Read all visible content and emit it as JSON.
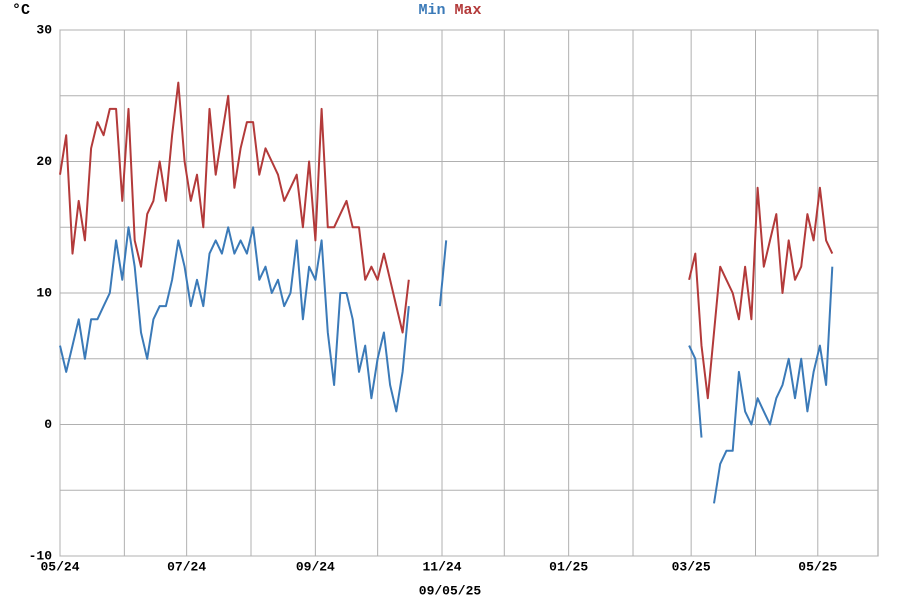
{
  "chart_data": {
    "type": "line",
    "ylabel": "°C",
    "caption": "09/05/25",
    "x": [
      0,
      3,
      6,
      9,
      12,
      15,
      18,
      21,
      24,
      27,
      30,
      33,
      36,
      39,
      42,
      45,
      48,
      51,
      54,
      57,
      60,
      63,
      66,
      69,
      72,
      75,
      78,
      81,
      84,
      87,
      90,
      93,
      96,
      99,
      102,
      105,
      108,
      111,
      114,
      117,
      120,
      123,
      126,
      129,
      132,
      135,
      138,
      141,
      144,
      147,
      150,
      153,
      156,
      159,
      162,
      165,
      168,
      171,
      174,
      177,
      180,
      183,
      186,
      189,
      192,
      195,
      198,
      201,
      204,
      207,
      210,
      213,
      216,
      219,
      222,
      225,
      228,
      231,
      234,
      237,
      240,
      243,
      246,
      249,
      252,
      255,
      258,
      261,
      264,
      267,
      270,
      273,
      276,
      279,
      282,
      285,
      288,
      291,
      294,
      297,
      300,
      303,
      306,
      309,
      312,
      315,
      318,
      321,
      324,
      327,
      330,
      333,
      336,
      339,
      342,
      345,
      348,
      351,
      354,
      357,
      360,
      363,
      366,
      369,
      372
    ],
    "series": [
      {
        "name": "Min",
        "color": "#3b7ab8",
        "values": [
          6,
          4,
          6,
          8,
          5,
          8,
          8,
          9,
          10,
          14,
          11,
          15,
          12,
          7,
          5,
          8,
          9,
          9,
          11,
          14,
          12,
          9,
          11,
          9,
          13,
          14,
          13,
          15,
          13,
          14,
          13,
          15,
          11,
          12,
          10,
          11,
          9,
          10,
          14,
          8,
          12,
          11,
          14,
          7,
          3,
          10,
          10,
          8,
          4,
          6,
          2,
          5,
          7,
          3,
          1,
          4,
          9,
          null,
          null,
          null,
          null,
          9,
          14,
          null,
          null,
          null,
          null,
          null,
          null,
          null,
          null,
          null,
          null,
          null,
          null,
          null,
          null,
          null,
          null,
          null,
          null,
          null,
          null,
          null,
          null,
          null,
          null,
          null,
          null,
          null,
          null,
          null,
          null,
          null,
          null,
          null,
          null,
          null,
          null,
          null,
          null,
          6,
          5,
          -1,
          null,
          -6,
          -3,
          -2,
          -2,
          4,
          1,
          0,
          2,
          1,
          0,
          2,
          3,
          5,
          2,
          5,
          1,
          4,
          6,
          3,
          12
        ]
      },
      {
        "name": "Max",
        "color": "#b33a3a",
        "values": [
          19,
          22,
          13,
          17,
          14,
          21,
          23,
          22,
          24,
          24,
          17,
          24,
          14,
          12,
          16,
          17,
          20,
          17,
          22,
          26,
          20,
          17,
          19,
          15,
          24,
          19,
          22,
          25,
          18,
          21,
          23,
          23,
          19,
          21,
          20,
          19,
          17,
          18,
          19,
          15,
          20,
          14,
          24,
          15,
          15,
          16,
          17,
          15,
          15,
          11,
          12,
          11,
          13,
          11,
          9,
          7,
          11,
          null,
          null,
          null,
          null,
          null,
          null,
          null,
          null,
          null,
          null,
          null,
          null,
          null,
          null,
          null,
          null,
          null,
          null,
          null,
          null,
          null,
          null,
          null,
          null,
          null,
          null,
          null,
          null,
          null,
          null,
          null,
          null,
          null,
          null,
          null,
          null,
          null,
          null,
          null,
          null,
          null,
          null,
          null,
          null,
          11,
          13,
          6,
          2,
          7,
          12,
          11,
          10,
          8,
          12,
          8,
          18,
          12,
          14,
          16,
          10,
          14,
          11,
          12,
          16,
          14,
          18,
          14,
          13
        ]
      }
    ],
    "xlim": [
      0,
      394
    ],
    "xticks": [
      {
        "value": 0,
        "label": "05/24"
      },
      {
        "value": 31,
        "label": null
      },
      {
        "value": 61,
        "label": "07/24"
      },
      {
        "value": 92,
        "label": null
      },
      {
        "value": 123,
        "label": "09/24"
      },
      {
        "value": 153,
        "label": null
      },
      {
        "value": 184,
        "label": "11/24"
      },
      {
        "value": 214,
        "label": null
      },
      {
        "value": 245,
        "label": "01/25"
      },
      {
        "value": 276,
        "label": null
      },
      {
        "value": 304,
        "label": "03/25"
      },
      {
        "value": 335,
        "label": null
      },
      {
        "value": 365,
        "label": "05/25"
      }
    ],
    "ylim": [
      -10,
      30
    ],
    "yticks": [
      -10,
      {
        "value": -5,
        "label": null
      },
      0,
      {
        "value": 5,
        "label": null
      },
      10,
      {
        "value": 15,
        "label": null
      },
      20,
      {
        "value": 25,
        "label": null
      },
      30
    ],
    "grid": true
  }
}
